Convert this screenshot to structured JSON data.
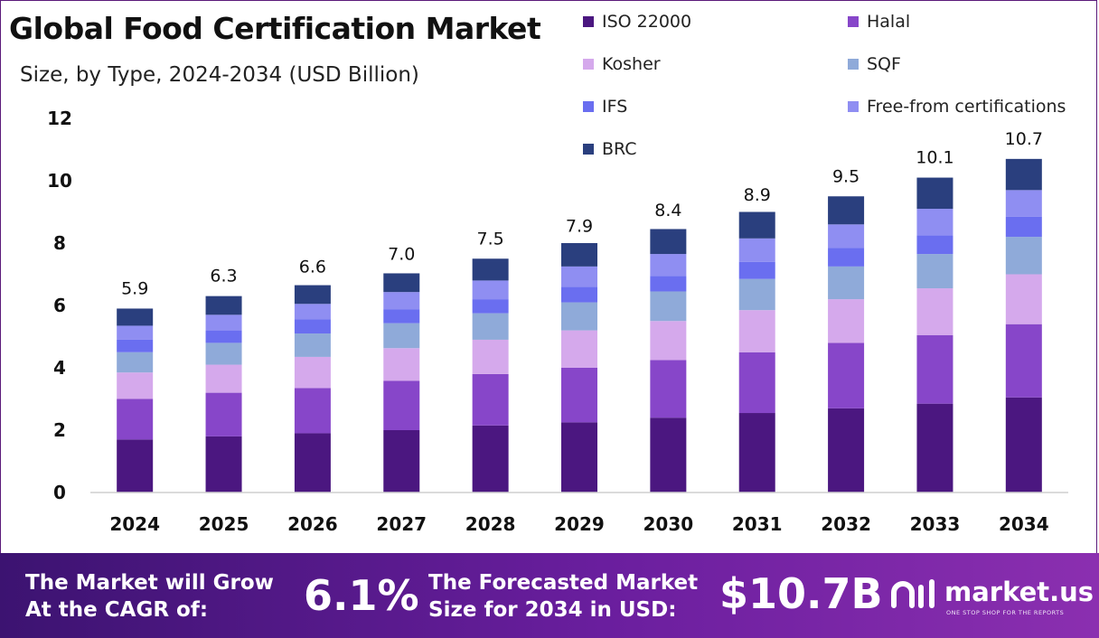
{
  "header": {
    "title": "Global Food Certification Market",
    "subtitle": "Size, by Type, 2024-2034  (USD Billion)"
  },
  "legend": [
    {
      "label": "ISO 22000",
      "color": "#4b1780"
    },
    {
      "label": "Halal",
      "color": "#8746c9"
    },
    {
      "label": "Kosher",
      "color": "#d5a9ec"
    },
    {
      "label": "SQF",
      "color": "#8faad9"
    },
    {
      "label": "IFS",
      "color": "#6a6ef0"
    },
    {
      "label": "Free-from certifications",
      "color": "#8f8ef2"
    },
    {
      "label": "BRC",
      "color": "#2a3f7e"
    }
  ],
  "chart_data": {
    "type": "bar",
    "stacked": true,
    "categories": [
      "2024",
      "2025",
      "2026",
      "2027",
      "2028",
      "2029",
      "2030",
      "2031",
      "2032",
      "2033",
      "2034"
    ],
    "totals": [
      5.9,
      6.3,
      6.6,
      7.0,
      7.5,
      7.9,
      8.4,
      8.9,
      9.5,
      10.1,
      10.7
    ],
    "series": [
      {
        "name": "ISO 22000",
        "values": [
          1.7,
          1.8,
          1.9,
          2.0,
          2.15,
          2.25,
          2.4,
          2.55,
          2.7,
          2.85,
          3.05
        ]
      },
      {
        "name": "Halal",
        "values": [
          1.3,
          1.4,
          1.45,
          1.58,
          1.65,
          1.75,
          1.85,
          1.95,
          2.1,
          2.2,
          2.35
        ]
      },
      {
        "name": "Kosher",
        "values": [
          0.85,
          0.9,
          1.0,
          1.05,
          1.1,
          1.2,
          1.25,
          1.35,
          1.4,
          1.5,
          1.6
        ]
      },
      {
        "name": "SQF",
        "values": [
          0.65,
          0.7,
          0.75,
          0.8,
          0.85,
          0.9,
          0.95,
          1.0,
          1.05,
          1.1,
          1.2
        ]
      },
      {
        "name": "IFS",
        "values": [
          0.4,
          0.4,
          0.45,
          0.45,
          0.45,
          0.5,
          0.5,
          0.55,
          0.6,
          0.6,
          0.65
        ]
      },
      {
        "name": "Free-from certifications",
        "values": [
          0.45,
          0.5,
          0.5,
          0.55,
          0.6,
          0.65,
          0.7,
          0.75,
          0.75,
          0.85,
          0.85
        ]
      },
      {
        "name": "BRC",
        "values": [
          0.55,
          0.6,
          0.6,
          0.6,
          0.7,
          0.75,
          0.8,
          0.85,
          0.9,
          1.0,
          1.0
        ]
      }
    ],
    "ylim": [
      0,
      12
    ],
    "yticks": [
      "0",
      "2",
      "4",
      "6",
      "8",
      "10",
      "12"
    ],
    "grid": false
  },
  "footer": {
    "cagr_label": "The Market will Grow At the CAGR of:",
    "cagr_value": "6.1%",
    "size_label": "The Forecasted Market Size for 2034 in USD:",
    "size_value": "$10.7B",
    "brand_name": "market.us",
    "brand_tagline": "ONE STOP SHOP FOR THE REPORTS"
  }
}
